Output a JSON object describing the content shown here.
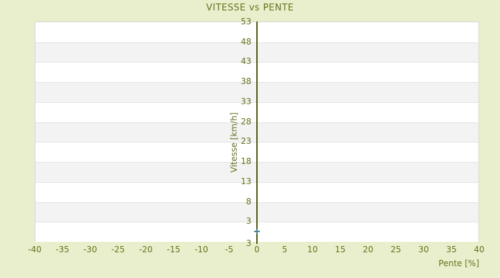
{
  "chart_data": {
    "type": "scatter",
    "title": "VITESSE vs PENTE",
    "xlabel": "Pente [%]",
    "ylabel": "Vitesse [km/h]",
    "xlim": [
      -40,
      40
    ],
    "ylim": [
      -2,
      53
    ],
    "x_ticks": [
      -40,
      -35,
      -30,
      -25,
      -20,
      -15,
      -10,
      -5,
      0,
      5,
      10,
      15,
      20,
      25,
      30,
      35,
      40
    ],
    "y_ticks": [
      53,
      48,
      43,
      38,
      33,
      28,
      23,
      18,
      13,
      8,
      3
    ],
    "y_axis_bottom_label": "3",
    "y_tick_step": 5,
    "points": [
      {
        "x": 0,
        "y": 0.5
      }
    ],
    "marker_style": "plus",
    "grid": "horizontal-alternating-bands",
    "legend": null,
    "colors": {
      "page_background": "#e9efcd",
      "plot_background": "#ffffff",
      "band_alternate": "#f3f3f3",
      "gridline": "#e3e3e3",
      "plot_border": "#d8d8d8",
      "text": "#67721c",
      "axis_line": "#4d5a10",
      "marker": "#4a8090"
    }
  }
}
